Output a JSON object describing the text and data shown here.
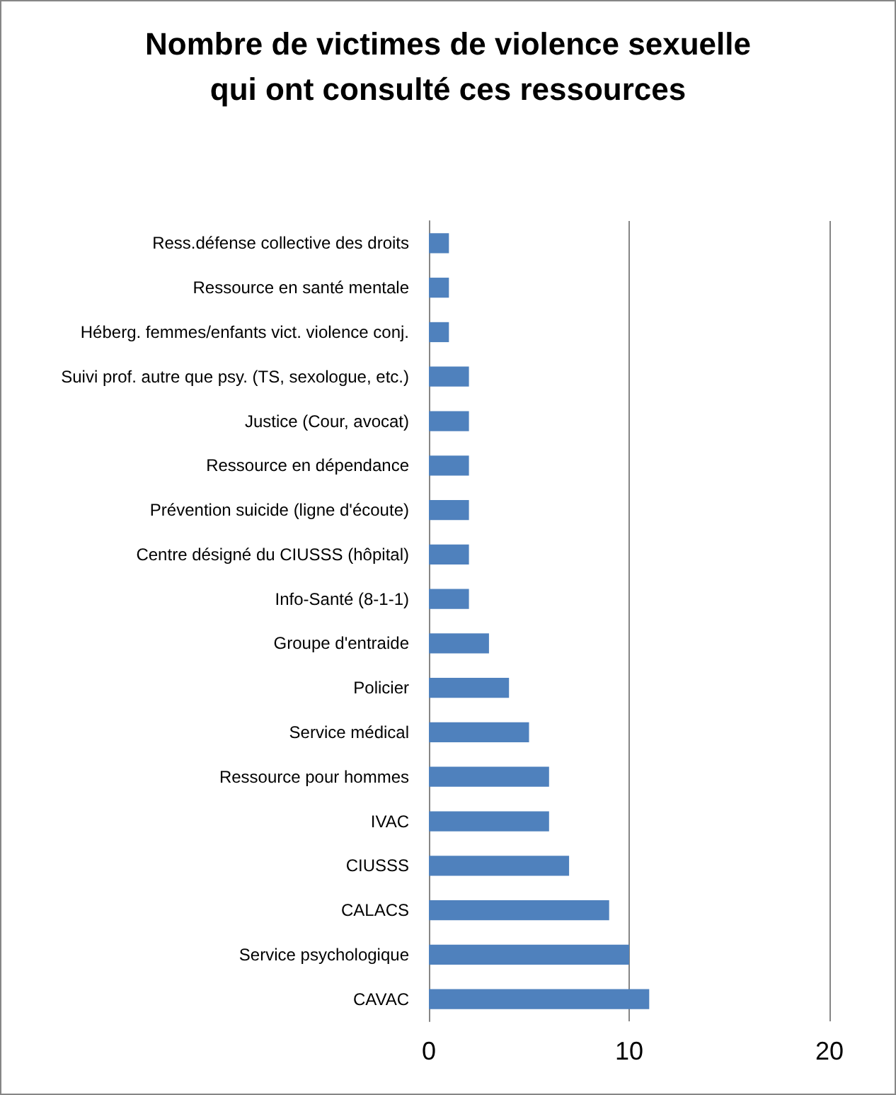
{
  "chart_data": {
    "type": "bar",
    "orientation": "horizontal",
    "title": "Nombre de victimes de violence sexuelle\nqui ont consulté ces ressources",
    "categories": [
      "Ress.défense collective des droits",
      "Ressource en santé mentale",
      "Héberg. femmes/enfants vict. violence conj.",
      "Suivi prof. autre que psy. (TS, sexologue, etc.)",
      "Justice (Cour, avocat)",
      "Ressource en dépendance",
      "Prévention suicide (ligne d'écoute)",
      "Centre désigné du CIUSSS (hôpital)",
      "Info-Santé (8-1-1)",
      "Groupe d'entraide",
      "Policier",
      "Service médical",
      "Ressource pour hommes",
      "IVAC",
      "CIUSSS",
      "CALACS",
      "Service psychologique",
      "CAVAC"
    ],
    "values": [
      1,
      1,
      1,
      2,
      2,
      2,
      2,
      2,
      2,
      3,
      4,
      5,
      6,
      6,
      7,
      9,
      10,
      11
    ],
    "color": "#4f81bd",
    "xlim": [
      0,
      20
    ],
    "xticks": [
      0,
      10,
      20
    ],
    "grid": "x"
  }
}
